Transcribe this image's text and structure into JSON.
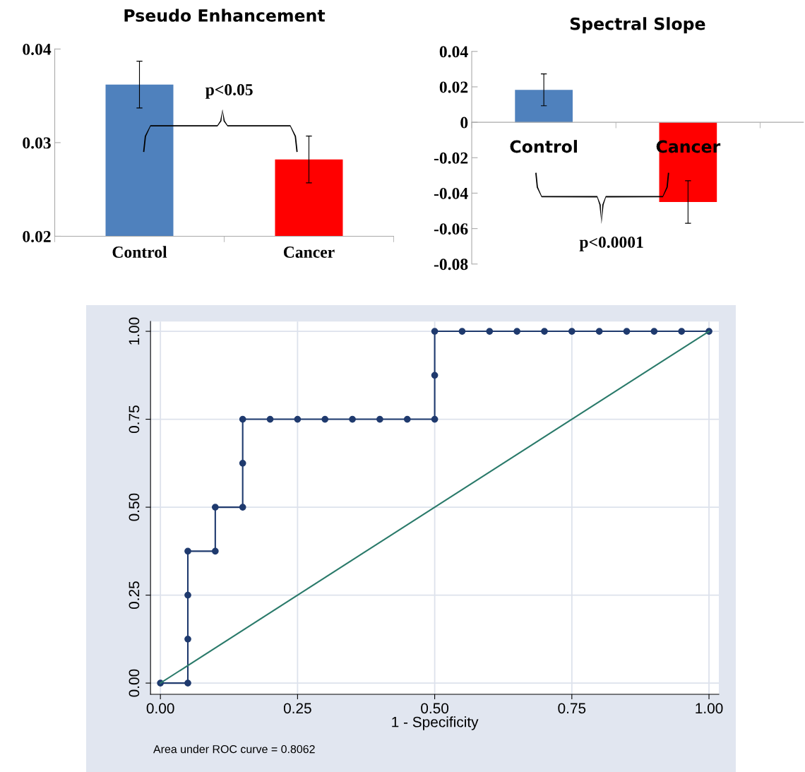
{
  "chart_data": [
    {
      "type": "bar",
      "title": "Pseudo Enhancement",
      "categories": [
        "Control",
        "Cancer"
      ],
      "values": [
        0.0362,
        0.0282
      ],
      "colors": [
        "#4f81bd",
        "#ff0000"
      ],
      "errors": [
        0.0025,
        0.0025
      ],
      "ylim": [
        0.02,
        0.04
      ],
      "yticks": [
        0.02,
        0.03,
        0.04
      ],
      "grid": false,
      "legend": false,
      "annotations": [
        "p<0.05"
      ]
    },
    {
      "type": "bar",
      "title": "Spectral Slope",
      "categories": [
        "Control",
        "Cancer"
      ],
      "values": [
        0.0183,
        -0.045
      ],
      "colors": [
        "#4f81bd",
        "#ff0000"
      ],
      "errors": [
        0.009,
        0.012
      ],
      "ylim": [
        -0.08,
        0.04
      ],
      "yticks": [
        -0.08,
        -0.06,
        -0.04,
        -0.02,
        0,
        0.02,
        0.04
      ],
      "grid": false,
      "legend": false,
      "annotations": [
        "p<0.0001"
      ]
    },
    {
      "type": "line",
      "xlabel": "1 - Specificity",
      "xlim": [
        -0.018,
        1.018
      ],
      "ylim": [
        -0.032,
        1.028
      ],
      "xticks": [
        {
          "value": 0,
          "label": "0.00"
        },
        {
          "value": 0.25,
          "label": "0.25"
        },
        {
          "value": 0.5,
          "label": "0.50"
        },
        {
          "value": 0.75,
          "label": "0.75"
        },
        {
          "value": 1,
          "label": "1.00"
        }
      ],
      "yticks": [
        {
          "value": 0,
          "label": "0.00"
        },
        {
          "value": 0.25,
          "label": "0.25"
        },
        {
          "value": 0.5,
          "label": "0.50"
        },
        {
          "value": 0.75,
          "label": "0.75"
        },
        {
          "value": 1,
          "label": "1.00"
        }
      ],
      "grid": true,
      "legend": false,
      "annotations": [
        "Area under ROC curve = 0.8062"
      ],
      "series": [
        {
          "color": "#1f3a6e",
          "marker": "circle",
          "x": [
            0,
            0.05,
            0.05,
            0.05,
            0.05,
            0.1,
            0.1,
            0.15,
            0.15,
            0.15,
            0.2,
            0.25,
            0.3,
            0.35,
            0.4,
            0.45,
            0.5,
            0.5,
            0.5,
            0.55,
            0.6,
            0.65,
            0.7,
            0.75,
            0.8,
            0.85,
            0.9,
            0.95,
            1
          ],
          "values": [
            0,
            0,
            0.125,
            0.25,
            0.375,
            0.375,
            0.5,
            0.5,
            0.625,
            0.75,
            0.75,
            0.75,
            0.75,
            0.75,
            0.75,
            0.75,
            0.75,
            0.875,
            1,
            1,
            1,
            1,
            1,
            1,
            1,
            1,
            1,
            1,
            1
          ]
        },
        {
          "color": "#2a7a6a",
          "marker": "none",
          "x": [
            0,
            1
          ],
          "values": [
            0,
            1
          ]
        }
      ]
    }
  ]
}
